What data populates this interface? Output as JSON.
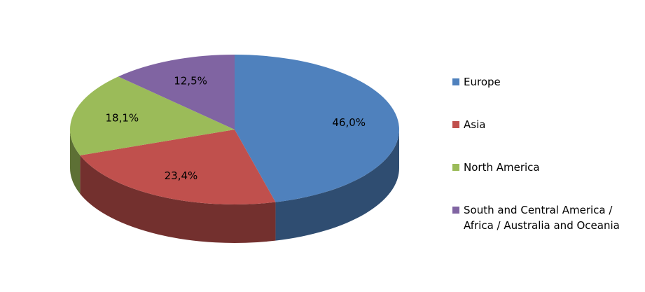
{
  "chart_data": {
    "type": "pie",
    "categories": [
      "Europe",
      "Asia",
      "North America",
      "South and Central America / Africa / Australia and Oceania"
    ],
    "values": [
      46.0,
      23.4,
      18.1,
      12.5
    ],
    "value_labels": [
      "46,0%",
      "23,4%",
      "18,1%",
      "12,5%"
    ],
    "colors": [
      "#4f81bd",
      "#c0504d",
      "#9bbb59",
      "#8064a2"
    ],
    "legend": "right"
  }
}
